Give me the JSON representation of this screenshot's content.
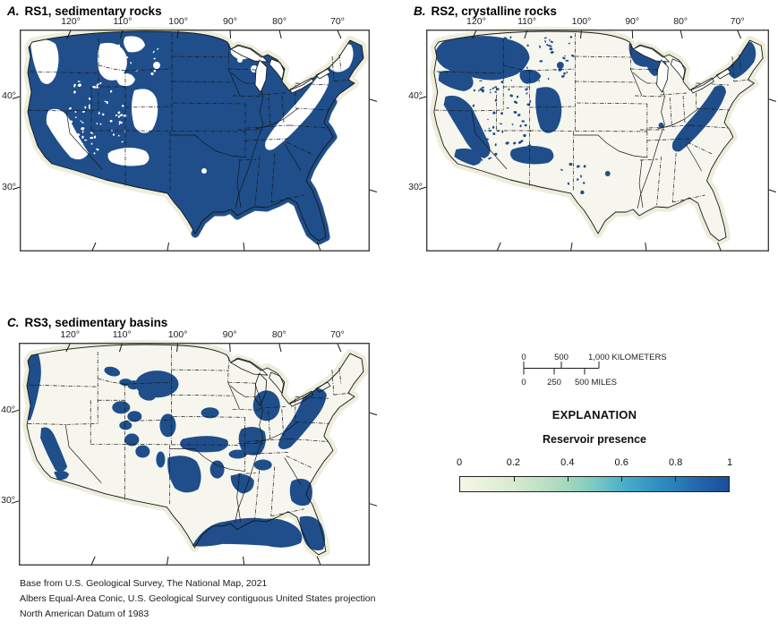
{
  "panels": [
    {
      "letter": "A.",
      "title": "RS1, sedimentary rocks"
    },
    {
      "letter": "B.",
      "title": "RS2, crystalline rocks"
    },
    {
      "letter": "C.",
      "title": "RS3, sedimentary basins"
    }
  ],
  "axes": {
    "lon_labels": [
      "120°",
      "110°",
      "100°",
      "90°",
      "80°",
      "70°"
    ],
    "lat_labels": [
      "40°",
      "30°"
    ]
  },
  "scale_bar": {
    "km_labels": [
      "0",
      "500",
      "1,000 KILOMETERS"
    ],
    "mi_labels": [
      "0",
      "250",
      "500 MILES"
    ]
  },
  "legend": {
    "heading": "EXPLANATION",
    "subheading": "Reservoir presence",
    "tick_labels": [
      "0",
      "0.2",
      "0.4",
      "0.6",
      "0.8",
      "1"
    ]
  },
  "colors": {
    "reservoir_high": "#1f4e8a",
    "land": "#f6f6ee",
    "shelf": "#ededdc",
    "line": "#161616",
    "frame": "#3f3f3f",
    "ramp": [
      "#f6f7e6 0%",
      "#d8eacf 20%",
      "#a5d7bd 40%",
      "#7cc9c2 50%",
      "#47abc8 62%",
      "#2e8ec2 74%",
      "#2a79b6 82%",
      "#2263a9 90%",
      "#1b4e99 100%"
    ]
  },
  "footer": {
    "lines": [
      "Base from U.S. Geological Survey, The National Map, 2021",
      "Albers Equal-Area Conic, U.S. Geological Survey contiguous United States projection",
      "North American Datum of 1983"
    ]
  }
}
